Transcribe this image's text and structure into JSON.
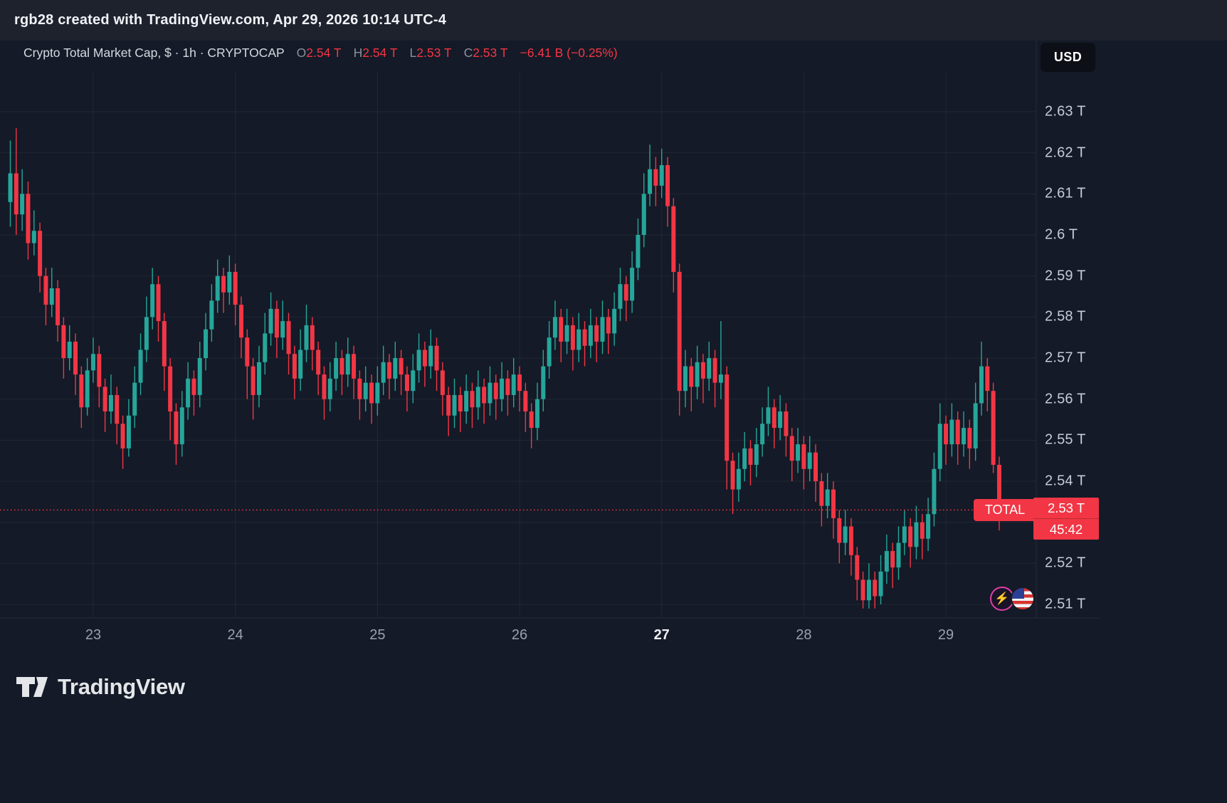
{
  "attribution": {
    "text": "rgb28 created with TradingView.com, Apr 29, 2026 10:14 UTC-4"
  },
  "header": {
    "title": "Crypto Total Market Cap, $ · 1h · CRYPTOCAP",
    "ohlc": {
      "o_label": "O",
      "o_value": "2.54 T",
      "h_label": "H",
      "h_value": "2.54 T",
      "l_label": "L",
      "l_value": "2.53 T",
      "c_label": "C",
      "c_value": "2.53 T",
      "change": "−6.41 B (−0.25%)"
    },
    "currency": "USD"
  },
  "price_line": {
    "label": "TOTAL",
    "price": "2.53 T",
    "countdown": "45:42",
    "value": 2.533
  },
  "logo": {
    "text": "TradingView"
  },
  "icons": {
    "left": "cryptocap-lightning-logo",
    "right": "us-flag-roundel"
  },
  "chart_data": {
    "type": "candlestick",
    "title": "Crypto Total Market Cap, $",
    "symbol": "CRYPTOCAP",
    "timeframe": "1h",
    "y_unit": "T (trillions USD)",
    "ylim": [
      2.505,
      2.635
    ],
    "grid": true,
    "up_color": "#26a69a",
    "down_color": "#f23645",
    "price_axis_labels": [
      {
        "text": "2.63 T",
        "value": 2.63
      },
      {
        "text": "2.62 T",
        "value": 2.62
      },
      {
        "text": "2.61 T",
        "value": 2.61
      },
      {
        "text": "2.6 T",
        "value": 2.6
      },
      {
        "text": "2.59 T",
        "value": 2.59
      },
      {
        "text": "2.58 T",
        "value": 2.58
      },
      {
        "text": "2.57 T",
        "value": 2.57
      },
      {
        "text": "2.56 T",
        "value": 2.56
      },
      {
        "text": "2.55 T",
        "value": 2.55
      },
      {
        "text": "2.54 T",
        "value": 2.54
      },
      {
        "text": "2.52 T",
        "value": 2.52
      },
      {
        "text": "2.51 T",
        "value": 2.51
      }
    ],
    "grid_prices": [
      2.63,
      2.62,
      2.61,
      2.6,
      2.59,
      2.58,
      2.57,
      2.56,
      2.55,
      2.54,
      2.53,
      2.52,
      2.51
    ],
    "time_axis_labels": [
      {
        "text": "23",
        "index": 14,
        "bold": false
      },
      {
        "text": "24",
        "index": 38,
        "bold": false
      },
      {
        "text": "25",
        "index": 62,
        "bold": false
      },
      {
        "text": "26",
        "index": 86,
        "bold": false
      },
      {
        "text": "27",
        "index": 110,
        "bold": true
      },
      {
        "text": "28",
        "index": 134,
        "bold": false
      },
      {
        "text": "29",
        "index": 158,
        "bold": false
      }
    ],
    "candles": [
      [
        2.608,
        2.623,
        2.602,
        2.615
      ],
      [
        2.615,
        2.626,
        2.6,
        2.605
      ],
      [
        2.605,
        2.616,
        2.601,
        2.61
      ],
      [
        2.61,
        2.613,
        2.594,
        2.598
      ],
      [
        2.598,
        2.606,
        2.595,
        2.601
      ],
      [
        2.601,
        2.603,
        2.586,
        2.59
      ],
      [
        2.59,
        2.592,
        2.578,
        2.583
      ],
      [
        2.583,
        2.592,
        2.58,
        2.587
      ],
      [
        2.587,
        2.589,
        2.574,
        2.578
      ],
      [
        2.578,
        2.58,
        2.565,
        2.57
      ],
      [
        2.57,
        2.578,
        2.567,
        2.574
      ],
      [
        2.574,
        2.576,
        2.561,
        2.566
      ],
      [
        2.566,
        2.568,
        2.553,
        2.558
      ],
      [
        2.558,
        2.57,
        2.556,
        2.567
      ],
      [
        2.567,
        2.575,
        2.564,
        2.571
      ],
      [
        2.571,
        2.573,
        2.558,
        2.563
      ],
      [
        2.563,
        2.565,
        2.552,
        2.557
      ],
      [
        2.557,
        2.566,
        2.554,
        2.561
      ],
      [
        2.561,
        2.563,
        2.549,
        2.554
      ],
      [
        2.554,
        2.556,
        2.543,
        2.548
      ],
      [
        2.548,
        2.56,
        2.546,
        2.556
      ],
      [
        2.556,
        2.568,
        2.553,
        2.564
      ],
      [
        2.564,
        2.576,
        2.561,
        2.572
      ],
      [
        2.572,
        2.585,
        2.569,
        2.58
      ],
      [
        2.58,
        2.592,
        2.577,
        2.588
      ],
      [
        2.588,
        2.59,
        2.574,
        2.579
      ],
      [
        2.579,
        2.581,
        2.562,
        2.568
      ],
      [
        2.568,
        2.57,
        2.55,
        2.557
      ],
      [
        2.557,
        2.559,
        2.544,
        2.549
      ],
      [
        2.549,
        2.562,
        2.546,
        2.558
      ],
      [
        2.558,
        2.569,
        2.555,
        2.565
      ],
      [
        2.565,
        2.567,
        2.556,
        2.561
      ],
      [
        2.561,
        2.574,
        2.558,
        2.57
      ],
      [
        2.57,
        2.581,
        2.567,
        2.577
      ],
      [
        2.577,
        2.588,
        2.574,
        2.584
      ],
      [
        2.584,
        2.594,
        2.581,
        2.59
      ],
      [
        2.59,
        2.592,
        2.581,
        2.586
      ],
      [
        2.586,
        2.595,
        2.583,
        2.591
      ],
      [
        2.591,
        2.593,
        2.578,
        2.583
      ],
      [
        2.583,
        2.585,
        2.57,
        2.575
      ],
      [
        2.575,
        2.577,
        2.56,
        2.568
      ],
      [
        2.568,
        2.57,
        2.555,
        2.561
      ],
      [
        2.561,
        2.573,
        2.558,
        2.569
      ],
      [
        2.569,
        2.581,
        2.566,
        2.576
      ],
      [
        2.576,
        2.586,
        2.573,
        2.582
      ],
      [
        2.582,
        2.584,
        2.57,
        2.575
      ],
      [
        2.575,
        2.584,
        2.572,
        2.579
      ],
      [
        2.579,
        2.581,
        2.566,
        2.571
      ],
      [
        2.571,
        2.573,
        2.56,
        2.565
      ],
      [
        2.565,
        2.577,
        2.562,
        2.572
      ],
      [
        2.572,
        2.583,
        2.569,
        2.578
      ],
      [
        2.578,
        2.58,
        2.567,
        2.572
      ],
      [
        2.572,
        2.574,
        2.561,
        2.566
      ],
      [
        2.566,
        2.568,
        2.555,
        2.56
      ],
      [
        2.56,
        2.569,
        2.557,
        2.565
      ],
      [
        2.565,
        2.574,
        2.562,
        2.57
      ],
      [
        2.57,
        2.572,
        2.561,
        2.566
      ],
      [
        2.566,
        2.575,
        2.563,
        2.571
      ],
      [
        2.571,
        2.573,
        2.56,
        2.565
      ],
      [
        2.565,
        2.567,
        2.555,
        2.56
      ],
      [
        2.56,
        2.568,
        2.557,
        2.564
      ],
      [
        2.564,
        2.566,
        2.554,
        2.559
      ],
      [
        2.559,
        2.568,
        2.556,
        2.564
      ],
      [
        2.564,
        2.573,
        2.561,
        2.569
      ],
      [
        2.569,
        2.571,
        2.56,
        2.565
      ],
      [
        2.565,
        2.574,
        2.562,
        2.57
      ],
      [
        2.57,
        2.572,
        2.561,
        2.566
      ],
      [
        2.566,
        2.568,
        2.557,
        2.562
      ],
      [
        2.562,
        2.571,
        2.559,
        2.567
      ],
      [
        2.567,
        2.576,
        2.564,
        2.572
      ],
      [
        2.572,
        2.574,
        2.563,
        2.568
      ],
      [
        2.568,
        2.577,
        2.565,
        2.573
      ],
      [
        2.573,
        2.575,
        2.562,
        2.567
      ],
      [
        2.567,
        2.569,
        2.556,
        2.561
      ],
      [
        2.561,
        2.563,
        2.551,
        2.556
      ],
      [
        2.556,
        2.565,
        2.553,
        2.561
      ],
      [
        2.561,
        2.563,
        2.552,
        2.557
      ],
      [
        2.557,
        2.566,
        2.554,
        2.562
      ],
      [
        2.562,
        2.564,
        2.553,
        2.558
      ],
      [
        2.558,
        2.567,
        2.555,
        2.563
      ],
      [
        2.563,
        2.565,
        2.554,
        2.559
      ],
      [
        2.559,
        2.568,
        2.556,
        2.564
      ],
      [
        2.564,
        2.566,
        2.555,
        2.56
      ],
      [
        2.56,
        2.569,
        2.557,
        2.565
      ],
      [
        2.565,
        2.567,
        2.556,
        2.561
      ],
      [
        2.561,
        2.57,
        2.558,
        2.566
      ],
      [
        2.566,
        2.568,
        2.557,
        2.562
      ],
      [
        2.562,
        2.564,
        2.552,
        2.557
      ],
      [
        2.557,
        2.559,
        2.548,
        2.553
      ],
      [
        2.553,
        2.564,
        2.55,
        2.56
      ],
      [
        2.56,
        2.572,
        2.557,
        2.568
      ],
      [
        2.568,
        2.579,
        2.565,
        2.575
      ],
      [
        2.575,
        2.584,
        2.572,
        2.58
      ],
      [
        2.58,
        2.582,
        2.569,
        2.574
      ],
      [
        2.574,
        2.582,
        2.571,
        2.578
      ],
      [
        2.578,
        2.58,
        2.567,
        2.572
      ],
      [
        2.572,
        2.581,
        2.569,
        2.577
      ],
      [
        2.577,
        2.579,
        2.568,
        2.573
      ],
      [
        2.573,
        2.582,
        2.57,
        2.578
      ],
      [
        2.578,
        2.58,
        2.569,
        2.574
      ],
      [
        2.574,
        2.584,
        2.571,
        2.58
      ],
      [
        2.58,
        2.582,
        2.571,
        2.576
      ],
      [
        2.576,
        2.586,
        2.573,
        2.582
      ],
      [
        2.582,
        2.592,
        2.579,
        2.588
      ],
      [
        2.588,
        2.59,
        2.579,
        2.584
      ],
      [
        2.584,
        2.596,
        2.581,
        2.592
      ],
      [
        2.592,
        2.604,
        2.589,
        2.6
      ],
      [
        2.6,
        2.615,
        2.597,
        2.61
      ],
      [
        2.61,
        2.622,
        2.607,
        2.616
      ],
      [
        2.616,
        2.619,
        2.607,
        2.612
      ],
      [
        2.612,
        2.621,
        2.609,
        2.617
      ],
      [
        2.617,
        2.619,
        2.602,
        2.607
      ],
      [
        2.607,
        2.609,
        2.586,
        2.591
      ],
      [
        2.591,
        2.593,
        2.556,
        2.562
      ],
      [
        2.562,
        2.572,
        2.558,
        2.568
      ],
      [
        2.568,
        2.57,
        2.557,
        2.563
      ],
      [
        2.563,
        2.573,
        2.56,
        2.569
      ],
      [
        2.569,
        2.571,
        2.559,
        2.565
      ],
      [
        2.565,
        2.574,
        2.562,
        2.57
      ],
      [
        2.57,
        2.572,
        2.558,
        2.564
      ],
      [
        2.564,
        2.579,
        2.56,
        2.566
      ],
      [
        2.566,
        2.568,
        2.538,
        2.545
      ],
      [
        2.545,
        2.547,
        2.532,
        2.538
      ],
      [
        2.538,
        2.547,
        2.535,
        2.543
      ],
      [
        2.543,
        2.552,
        2.54,
        2.548
      ],
      [
        2.548,
        2.55,
        2.539,
        2.544
      ],
      [
        2.544,
        2.553,
        2.541,
        2.549
      ],
      [
        2.549,
        2.558,
        2.546,
        2.554
      ],
      [
        2.554,
        2.563,
        2.551,
        2.558
      ],
      [
        2.558,
        2.56,
        2.548,
        2.553
      ],
      [
        2.553,
        2.561,
        2.55,
        2.557
      ],
      [
        2.557,
        2.559,
        2.546,
        2.551
      ],
      [
        2.551,
        2.553,
        2.54,
        2.545
      ],
      [
        2.545,
        2.553,
        2.542,
        2.549
      ],
      [
        2.549,
        2.551,
        2.538,
        2.543
      ],
      [
        2.543,
        2.551,
        2.54,
        2.547
      ],
      [
        2.547,
        2.549,
        2.535,
        2.54
      ],
      [
        2.54,
        2.542,
        2.529,
        2.534
      ],
      [
        2.534,
        2.542,
        2.531,
        2.538
      ],
      [
        2.538,
        2.54,
        2.526,
        2.531
      ],
      [
        2.531,
        2.533,
        2.52,
        2.525
      ],
      [
        2.525,
        2.533,
        2.522,
        2.529
      ],
      [
        2.529,
        2.531,
        2.517,
        2.522
      ],
      [
        2.522,
        2.524,
        2.511,
        2.516
      ],
      [
        2.516,
        2.518,
        2.509,
        2.511
      ],
      [
        2.511,
        2.52,
        2.509,
        2.516
      ],
      [
        2.516,
        2.518,
        2.509,
        2.512
      ],
      [
        2.512,
        2.522,
        2.51,
        2.518
      ],
      [
        2.518,
        2.527,
        2.515,
        2.523
      ],
      [
        2.523,
        2.525,
        2.514,
        2.519
      ],
      [
        2.519,
        2.529,
        2.516,
        2.525
      ],
      [
        2.525,
        2.533,
        2.522,
        2.529
      ],
      [
        2.529,
        2.531,
        2.519,
        2.524
      ],
      [
        2.524,
        2.534,
        2.521,
        2.53
      ],
      [
        2.53,
        2.532,
        2.521,
        2.526
      ],
      [
        2.526,
        2.536,
        2.523,
        2.532
      ],
      [
        2.532,
        2.547,
        2.529,
        2.543
      ],
      [
        2.543,
        2.559,
        2.54,
        2.554
      ],
      [
        2.554,
        2.556,
        2.544,
        2.549
      ],
      [
        2.549,
        2.559,
        2.546,
        2.555
      ],
      [
        2.555,
        2.557,
        2.544,
        2.549
      ],
      [
        2.549,
        2.557,
        2.546,
        2.553
      ],
      [
        2.553,
        2.555,
        2.543,
        2.548
      ],
      [
        2.548,
        2.564,
        2.545,
        2.559
      ],
      [
        2.559,
        2.574,
        2.556,
        2.568
      ],
      [
        2.568,
        2.57,
        2.557,
        2.562
      ],
      [
        2.562,
        2.564,
        2.542,
        2.544
      ],
      [
        2.544,
        2.546,
        2.528,
        2.533
      ]
    ]
  }
}
